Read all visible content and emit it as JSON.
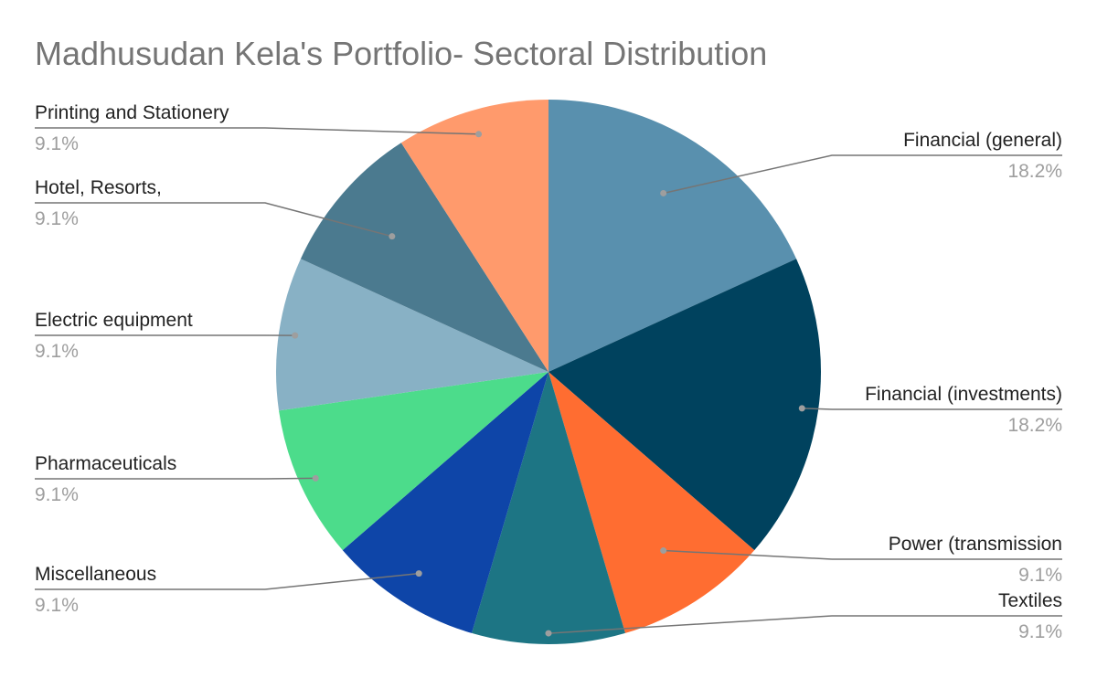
{
  "chart_data": {
    "type": "pie",
    "title": "Madhusudan Kela's Portfolio- Sectoral Distribution",
    "slices": [
      {
        "label": "Financial (general)",
        "value": 18.2,
        "pct_label": "18.2%",
        "color": "#5990ae"
      },
      {
        "label": "Financial (investments)",
        "value": 18.2,
        "pct_label": "18.2%",
        "color": "#00425e"
      },
      {
        "label": "Power (transmission",
        "value": 9.1,
        "pct_label": "9.1%",
        "color": "#ff6d31"
      },
      {
        "label": "Textiles",
        "value": 9.1,
        "pct_label": "9.1%",
        "color": "#1d7584"
      },
      {
        "label": "Miscellaneous",
        "value": 9.1,
        "pct_label": "9.1%",
        "color": "#0e45a8"
      },
      {
        "label": "Pharmaceuticals",
        "value": 9.1,
        "pct_label": "9.1%",
        "color": "#4cdc8b"
      },
      {
        "label": "Electric equipment",
        "value": 9.1,
        "pct_label": "9.1%",
        "color": "#88b1c5"
      },
      {
        "label": "Hotel, Resorts,",
        "value": 9.1,
        "pct_label": "9.1%",
        "color": "#4b7a8f"
      },
      {
        "label": "Printing and Stationery",
        "value": 9.1,
        "pct_label": "9.1%",
        "color": "#ff9a6c"
      }
    ],
    "legend": "none"
  }
}
